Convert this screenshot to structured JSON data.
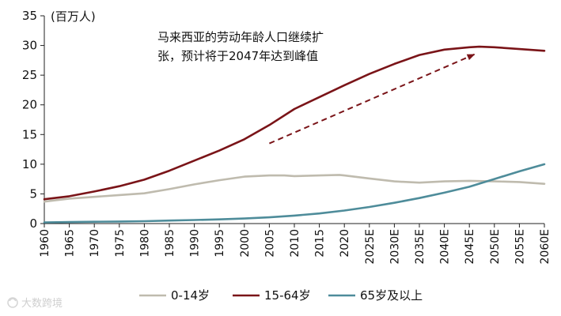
{
  "chart_data": {
    "type": "line",
    "unit_label": "(百万人)",
    "annotation": {
      "line1": "马来西亚的劳动年龄人口继续扩",
      "line2": "张，预计将于2047年达到峰值"
    },
    "ylim": [
      0,
      35
    ],
    "yticks": [
      0,
      5,
      10,
      15,
      20,
      25,
      30,
      35
    ],
    "xlim": [
      1960,
      2060
    ],
    "xticks": [
      1960,
      1965,
      1970,
      1975,
      1980,
      1985,
      1990,
      1995,
      2000,
      2005,
      2010,
      2015,
      2020,
      2025,
      2030,
      2035,
      2040,
      2045,
      2050,
      2055,
      2060
    ],
    "xtick_labels": [
      "1960",
      "1965",
      "1970",
      "1975",
      "1980",
      "1985",
      "1990",
      "1995",
      "2000",
      "2005",
      "2010",
      "2015",
      "2020",
      "2025E",
      "2030E",
      "2035E",
      "2040E",
      "2045E",
      "2050E",
      "2055E",
      "2060E"
    ],
    "series": [
      {
        "name": "0-14岁",
        "color": "#BFBBAE",
        "x": [
          1960,
          1965,
          1970,
          1975,
          1980,
          1985,
          1990,
          1995,
          2000,
          2005,
          2008,
          2010,
          2015,
          2019,
          2020,
          2025,
          2030,
          2035,
          2040,
          2045,
          2050,
          2055,
          2060
        ],
        "values": [
          3.7,
          4.2,
          4.5,
          4.8,
          5.1,
          5.8,
          6.6,
          7.3,
          7.9,
          8.1,
          8.1,
          8.0,
          8.1,
          8.2,
          8.1,
          7.6,
          7.1,
          6.9,
          7.1,
          7.2,
          7.1,
          7.0,
          6.7
        ]
      },
      {
        "name": "15-64岁",
        "color": "#7A1418",
        "x": [
          1960,
          1965,
          1970,
          1975,
          1980,
          1985,
          1990,
          1995,
          2000,
          2005,
          2010,
          2015,
          2020,
          2025,
          2030,
          2035,
          2040,
          2045,
          2047,
          2050,
          2055,
          2060
        ],
        "values": [
          4.1,
          4.6,
          5.4,
          6.3,
          7.4,
          8.9,
          10.6,
          12.3,
          14.2,
          16.6,
          19.3,
          21.3,
          23.3,
          25.2,
          26.9,
          28.4,
          29.3,
          29.7,
          29.8,
          29.7,
          29.4,
          29.1
        ]
      },
      {
        "name": "65岁及以上",
        "color": "#4E8C9A",
        "x": [
          1960,
          1965,
          1970,
          1975,
          1980,
          1985,
          1990,
          1995,
          2000,
          2005,
          2010,
          2015,
          2020,
          2025,
          2030,
          2035,
          2040,
          2045,
          2050,
          2055,
          2060
        ],
        "values": [
          0.2,
          0.25,
          0.3,
          0.35,
          0.4,
          0.5,
          0.6,
          0.7,
          0.85,
          1.05,
          1.35,
          1.7,
          2.2,
          2.8,
          3.5,
          4.3,
          5.2,
          6.2,
          7.5,
          8.8,
          10.0
        ]
      }
    ],
    "trend_arrow": {
      "from": [
        2005,
        13.5
      ],
      "to": [
        2046,
        28.5
      ],
      "color": "#7A1418"
    }
  },
  "watermark": "大数跨境"
}
